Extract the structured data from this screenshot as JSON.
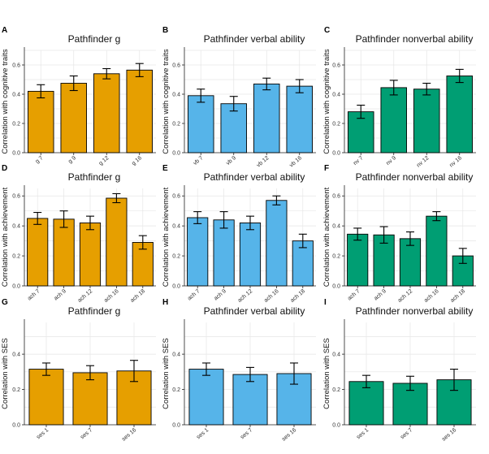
{
  "colors": {
    "g": "#E69F00",
    "verbal": "#56B4E9",
    "nonverbal": "#009E73"
  },
  "chart_data": [
    {
      "letter": "A",
      "type": "bar",
      "title": "Pathfinder g",
      "ylabel": "Correlation with cognitive traits",
      "color_key": "g",
      "ylim": [
        0,
        0.7
      ],
      "yticks": [
        0.0,
        0.2,
        0.4,
        0.6
      ],
      "grid": true,
      "categories": [
        "g 7",
        "g 9",
        "g 12",
        "g 16"
      ],
      "values": [
        0.42,
        0.475,
        0.54,
        0.565
      ],
      "errors": [
        0.045,
        0.05,
        0.035,
        0.045
      ]
    },
    {
      "letter": "B",
      "type": "bar",
      "title": "Pathfinder verbal ability",
      "ylabel": "Correlation with cognitive traits",
      "color_key": "verbal",
      "ylim": [
        0,
        0.7
      ],
      "yticks": [
        0.0,
        0.2,
        0.4,
        0.6
      ],
      "grid": true,
      "categories": [
        "vb 7",
        "vb 9",
        "vb 12",
        "vb 16"
      ],
      "values": [
        0.39,
        0.335,
        0.47,
        0.455
      ],
      "errors": [
        0.045,
        0.05,
        0.04,
        0.045
      ]
    },
    {
      "letter": "C",
      "type": "bar",
      "title": "Pathfinder nonverbal ability",
      "ylabel": "Correlation with cognitive traits",
      "color_key": "nonverbal",
      "ylim": [
        0,
        0.7
      ],
      "yticks": [
        0.0,
        0.2,
        0.4,
        0.6
      ],
      "grid": true,
      "categories": [
        "nv 7",
        "nv 9",
        "nv 12",
        "nv 16"
      ],
      "values": [
        0.28,
        0.445,
        0.435,
        0.525
      ],
      "errors": [
        0.045,
        0.05,
        0.04,
        0.045
      ]
    },
    {
      "letter": "D",
      "type": "bar",
      "title": "Pathfinder g",
      "ylabel": "Correlation with achievement",
      "color_key": "g",
      "ylim": [
        0,
        0.65
      ],
      "yticks": [
        0.0,
        0.2,
        0.4,
        0.6
      ],
      "grid": true,
      "categories": [
        "ach 7",
        "ach 9",
        "ach 12",
        "ach 16",
        "ach 18"
      ],
      "values": [
        0.45,
        0.445,
        0.42,
        0.585,
        0.29
      ],
      "errors": [
        0.04,
        0.055,
        0.045,
        0.03,
        0.045
      ]
    },
    {
      "letter": "E",
      "type": "bar",
      "title": "Pathfinder verbal ability",
      "ylabel": "Correlation with achievement",
      "color_key": "verbal",
      "ylim": [
        0,
        0.65
      ],
      "yticks": [
        0.0,
        0.2,
        0.4,
        0.6
      ],
      "grid": true,
      "categories": [
        "ach 7",
        "ach 9",
        "ach 12",
        "ach 16",
        "ach 18"
      ],
      "values": [
        0.455,
        0.44,
        0.42,
        0.57,
        0.3
      ],
      "errors": [
        0.04,
        0.055,
        0.045,
        0.03,
        0.045
      ]
    },
    {
      "letter": "F",
      "type": "bar",
      "title": "Pathfinder nonverbal ability",
      "ylabel": "Correlation with achievement",
      "color_key": "nonverbal",
      "ylim": [
        0,
        0.65
      ],
      "yticks": [
        0.0,
        0.2,
        0.4,
        0.6
      ],
      "grid": true,
      "categories": [
        "ach 7",
        "ach 9",
        "ach 12",
        "ach 16",
        "ach 18"
      ],
      "values": [
        0.345,
        0.34,
        0.315,
        0.465,
        0.2
      ],
      "errors": [
        0.04,
        0.055,
        0.045,
        0.03,
        0.05
      ]
    },
    {
      "letter": "G",
      "type": "bar",
      "title": "Pathfinder g",
      "ylabel": "Correlation with SES",
      "color_key": "g",
      "ylim": [
        0,
        0.58
      ],
      "yticks": [
        0.0,
        0.2,
        0.4
      ],
      "grid": true,
      "categories": [
        "ses 1",
        "ses 7",
        "ses 16"
      ],
      "values": [
        0.315,
        0.295,
        0.305
      ],
      "errors": [
        0.035,
        0.04,
        0.06
      ]
    },
    {
      "letter": "H",
      "type": "bar",
      "title": "Pathfinder verbal ability",
      "ylabel": "Correlation with SES",
      "color_key": "verbal",
      "ylim": [
        0,
        0.58
      ],
      "yticks": [
        0.0,
        0.2,
        0.4
      ],
      "grid": true,
      "categories": [
        "ses 1",
        "ses 7",
        "ses 16"
      ],
      "values": [
        0.315,
        0.285,
        0.29
      ],
      "errors": [
        0.035,
        0.04,
        0.06
      ]
    },
    {
      "letter": "I",
      "type": "bar",
      "title": "Pathfinder nonverbal ability",
      "ylabel": "Correlation with SES",
      "color_key": "nonverbal",
      "ylim": [
        0,
        0.58
      ],
      "yticks": [
        0.0,
        0.2,
        0.4
      ],
      "grid": true,
      "categories": [
        "ses 1",
        "ses 7",
        "ses 16"
      ],
      "values": [
        0.245,
        0.235,
        0.255
      ],
      "errors": [
        0.035,
        0.04,
        0.06
      ]
    }
  ]
}
